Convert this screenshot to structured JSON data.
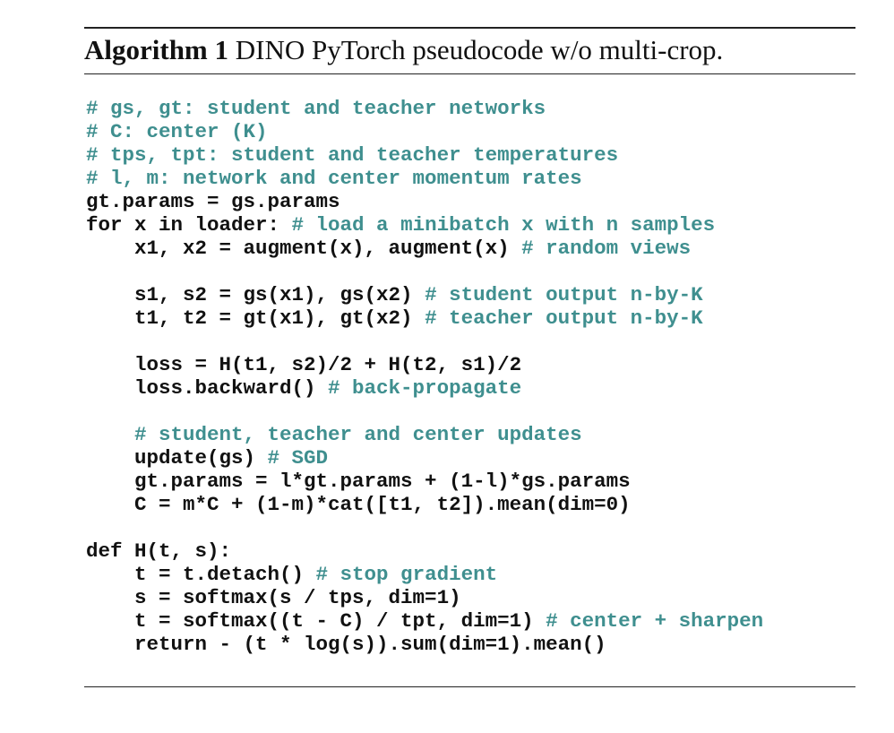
{
  "caption": {
    "label": "Algorithm 1",
    "text": " DINO PyTorch pseudocode w/o multi-crop."
  },
  "colors": {
    "code": "#111111",
    "comment": "#3f8f8f",
    "rule": "#222222"
  },
  "code_lines": [
    {
      "indent": 0,
      "code": "",
      "comment": "# gs, gt: student and teacher networks"
    },
    {
      "indent": 0,
      "code": "",
      "comment": "# C: center (K)"
    },
    {
      "indent": 0,
      "code": "",
      "comment": "# tps, tpt: student and teacher temperatures"
    },
    {
      "indent": 0,
      "code": "",
      "comment": "# l, m: network and center momentum rates"
    },
    {
      "indent": 0,
      "code": "gt.params = gs.params",
      "comment": ""
    },
    {
      "indent": 0,
      "code": "for x in loader: ",
      "comment": "# load a minibatch x with n samples"
    },
    {
      "indent": 4,
      "code": "x1, x2 = augment(x), augment(x) ",
      "comment": "# random views"
    },
    {
      "indent": 0,
      "code": "",
      "comment": ""
    },
    {
      "indent": 4,
      "code": "s1, s2 = gs(x1), gs(x2) ",
      "comment": "# student output n-by-K"
    },
    {
      "indent": 4,
      "code": "t1, t2 = gt(x1), gt(x2) ",
      "comment": "# teacher output n-by-K"
    },
    {
      "indent": 0,
      "code": "",
      "comment": ""
    },
    {
      "indent": 4,
      "code": "loss = H(t1, s2)/2 + H(t2, s1)/2",
      "comment": ""
    },
    {
      "indent": 4,
      "code": "loss.backward() ",
      "comment": "# back-propagate"
    },
    {
      "indent": 0,
      "code": "",
      "comment": ""
    },
    {
      "indent": 4,
      "code": "",
      "comment": "# student, teacher and center updates"
    },
    {
      "indent": 4,
      "code": "update(gs) ",
      "comment": "# SGD"
    },
    {
      "indent": 4,
      "code": "gt.params = l*gt.params + (1-l)*gs.params",
      "comment": ""
    },
    {
      "indent": 4,
      "code": "C = m*C + (1-m)*cat([t1, t2]).mean(dim=0)",
      "comment": ""
    },
    {
      "indent": 0,
      "code": "",
      "comment": ""
    },
    {
      "indent": 0,
      "code": "def H(t, s):",
      "comment": ""
    },
    {
      "indent": 4,
      "code": "t = t.detach() ",
      "comment": "# stop gradient"
    },
    {
      "indent": 4,
      "code": "s = softmax(s / tps, dim=1)",
      "comment": ""
    },
    {
      "indent": 4,
      "code": "t = softmax((t - C) / tpt, dim=1) ",
      "comment": "# center + sharpen"
    },
    {
      "indent": 4,
      "code": "return - (t * log(s)).sum(dim=1).mean()",
      "comment": ""
    }
  ]
}
